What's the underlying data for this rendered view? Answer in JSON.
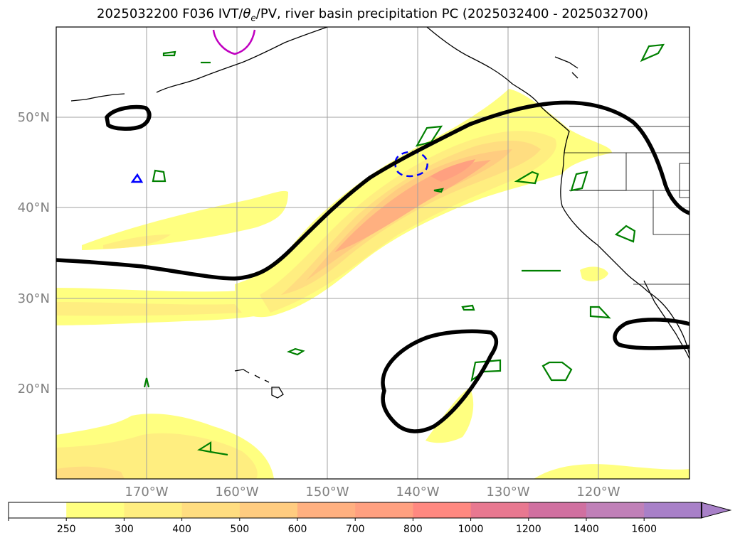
{
  "title": {
    "prefix": "2025032200 F036 IVT/",
    "theta": "θ",
    "theta_sub": "e",
    "suffix": "/PV, river basin precipitation PC (2025032400 - 2025032700)"
  },
  "map": {
    "projection": "plate carree",
    "lon_range": [
      180,
      250
    ],
    "lat_range": [
      10,
      60
    ],
    "grid": true,
    "lat_labels": [
      "20°N",
      "30°N",
      "40°N",
      "50°N"
    ],
    "lon_labels": [
      "170°W",
      "160°W",
      "150°W",
      "140°W",
      "130°W",
      "120°W"
    ]
  },
  "colorbar": {
    "ticks": [
      "250",
      "300",
      "400",
      "500",
      "600",
      "700",
      "800",
      "1000",
      "1200",
      "1400",
      "1600"
    ],
    "colors": [
      "#ffffff",
      "#ffff80",
      "#ffee80",
      "#ffdd80",
      "#ffcc80",
      "#ffb080",
      "#ffa080",
      "#ff8880",
      "#e87890",
      "#d070a0",
      "#c080b8",
      "#a880c8"
    ],
    "extend": "max"
  },
  "chart_data": {
    "type": "heatmap",
    "variable": "IVT",
    "levels": [
      250,
      300,
      400,
      500,
      600,
      700,
      800,
      1000,
      1200,
      1400,
      1600
    ],
    "features": {
      "atmospheric_river_core_max_level": 800,
      "pv_contour_color": "#000000",
      "negative_contour_color": "#0000ff",
      "magenta_contour_color": "#c000c0",
      "basin_precip_contour_color": "#008000"
    }
  }
}
